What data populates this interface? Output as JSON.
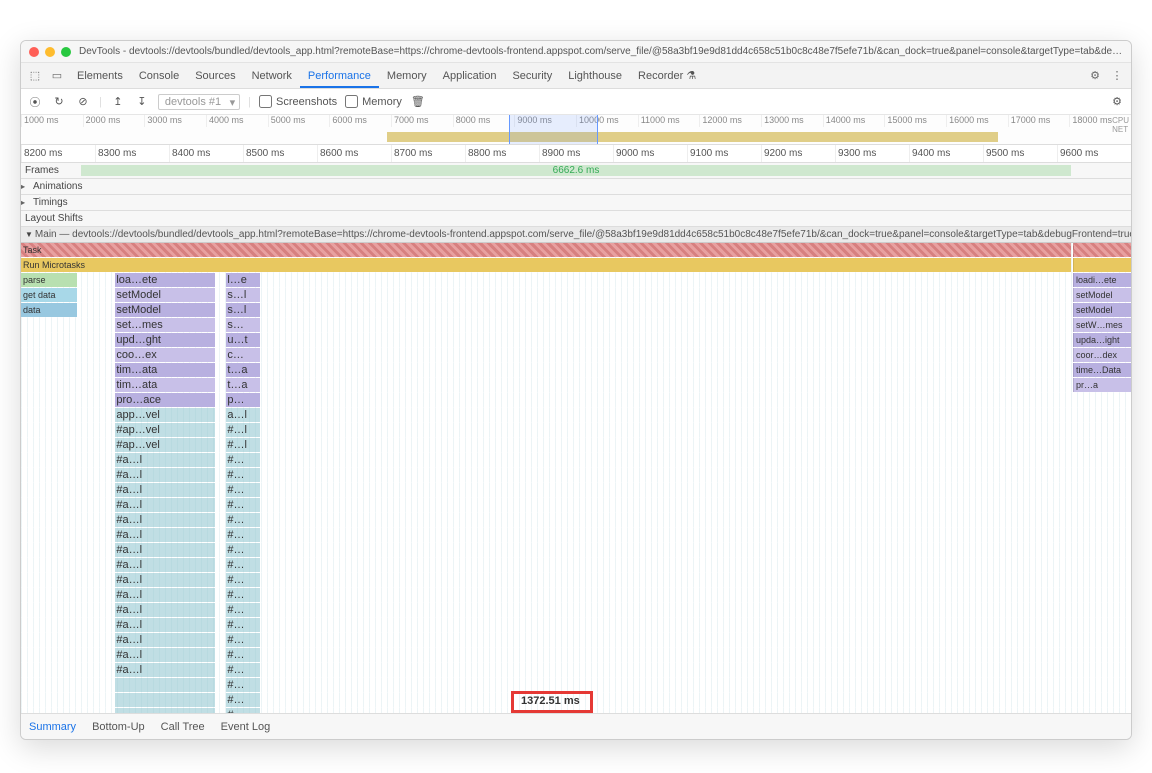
{
  "window": {
    "title": "DevTools - devtools://devtools/bundled/devtools_app.html?remoteBase=https://chrome-devtools-frontend.appspot.com/serve_file/@58a3bf19e9d81dd4c658c51b0c8c48e7f5efe71b/&can_dock=true&panel=console&targetType=tab&debugFrontend=true"
  },
  "tabs": {
    "items": [
      "Elements",
      "Console",
      "Sources",
      "Network",
      "Performance",
      "Memory",
      "Application",
      "Security",
      "Lighthouse",
      "Recorder"
    ],
    "active": "Performance",
    "recorder_badge": "⚗"
  },
  "toolbar": {
    "record": "⦿",
    "reload": "↻",
    "clear": "⊘",
    "upload": "↥",
    "download": "↧",
    "profile_select": "devtools #1",
    "screenshots_label": "Screenshots",
    "memory_label": "Memory",
    "trash": "🗑",
    "settings": "⚙"
  },
  "overview": {
    "ticks": [
      "1000 ms",
      "2000 ms",
      "3000 ms",
      "4000 ms",
      "5000 ms",
      "6000 ms",
      "7000 ms",
      "8000 ms",
      "9000 ms",
      "10000 ms",
      "11000 ms",
      "12000 ms",
      "13000 ms",
      "14000 ms",
      "15000 ms",
      "16000 ms",
      "17000 ms",
      "18000 ms"
    ],
    "right_labels": [
      "CPU",
      "NET"
    ],
    "activity_band": {
      "left_pct": 33,
      "width_pct": 55
    },
    "selection": {
      "left_pct": 44,
      "width_pct": 8
    }
  },
  "ruler2": [
    "8200 ms",
    "8300 ms",
    "8400 ms",
    "8500 ms",
    "8600 ms",
    "8700 ms",
    "8800 ms",
    "8900 ms",
    "9000 ms",
    "9100 ms",
    "9200 ms",
    "9300 ms",
    "9400 ms",
    "9500 ms",
    "9600 ms"
  ],
  "tracks": {
    "frames": {
      "label": "Frames",
      "value": "6662.6 ms"
    },
    "animations": "Animations",
    "timings": "Timings",
    "layout_shifts": "Layout Shifts",
    "main_label": "Main — devtools://devtools/bundled/devtools_app.html?remoteBase=https://chrome-devtools-frontend.appspot.com/serve_file/@58a3bf19e9d81dd4c658c51b0c8c48e7f5efe71b/&can_dock=true&panel=console&targetType=tab&debugFrontend=true"
  },
  "flame": {
    "task": "Task",
    "microtasks": "Run Microtasks",
    "left_labels": [
      "parse",
      "get data",
      "data"
    ],
    "cols": {
      "a": {
        "left_pct": 8.5,
        "width_pct": 9
      },
      "b": {
        "left_pct": 18.5,
        "width_pct": 3
      }
    },
    "rows": [
      {
        "a": "loa…ete",
        "b": "l…e",
        "right": "loadi…ete",
        "color": "c-lilac"
      },
      {
        "a": "setModel",
        "b": "s…l",
        "right": "setModel",
        "color": "c-lilac2"
      },
      {
        "a": "setModel",
        "b": "s…l",
        "right": "setModel",
        "color": "c-lilac"
      },
      {
        "a": "set…mes",
        "b": "s…",
        "right": "setW…mes",
        "color": "c-lilac2"
      },
      {
        "a": "upd…ght",
        "b": "u…t",
        "right": "upda…ight",
        "color": "c-lilac"
      },
      {
        "a": "coo…ex",
        "b": "c…",
        "right": "coor…dex",
        "color": "c-lilac2"
      },
      {
        "a": "tim…ata",
        "b": "t…a",
        "right": "time…Data",
        "color": "c-lilac"
      },
      {
        "a": "tim…ata",
        "b": "t…a",
        "right": "pr…a",
        "color": "c-lilac2"
      },
      {
        "a": "pro…ace",
        "b": "p…",
        "right": "",
        "color": "c-lilac"
      },
      {
        "a": "app…vel",
        "b": "a…l",
        "right": "",
        "color": "c-teal"
      },
      {
        "a": "#ap…vel",
        "b": "#…l",
        "right": "",
        "color": "c-teal"
      },
      {
        "a": "#ap…vel",
        "b": "#…l",
        "right": "",
        "color": "c-teal"
      },
      {
        "a": "#a…l",
        "b": "#…",
        "right": "",
        "color": "c-teal"
      },
      {
        "a": "#a…l",
        "b": "#…",
        "right": "",
        "color": "c-teal"
      },
      {
        "a": "#a…l",
        "b": "#…",
        "right": "",
        "color": "c-teal"
      },
      {
        "a": "#a…l",
        "b": "#…",
        "right": "",
        "color": "c-teal"
      },
      {
        "a": "#a…l",
        "b": "#…",
        "right": "",
        "color": "c-teal"
      },
      {
        "a": "#a…l",
        "b": "#…",
        "right": "",
        "color": "c-teal"
      },
      {
        "a": "#a…l",
        "b": "#…",
        "right": "",
        "color": "c-teal"
      },
      {
        "a": "#a…l",
        "b": "#…",
        "right": "",
        "color": "c-teal"
      },
      {
        "a": "#a…l",
        "b": "#…",
        "right": "",
        "color": "c-teal"
      },
      {
        "a": "#a…l",
        "b": "#…",
        "right": "",
        "color": "c-teal"
      },
      {
        "a": "#a…l",
        "b": "#…",
        "right": "",
        "color": "c-teal"
      },
      {
        "a": "#a…l",
        "b": "#…",
        "right": "",
        "color": "c-teal"
      },
      {
        "a": "#a…l",
        "b": "#…",
        "right": "",
        "color": "c-teal"
      },
      {
        "a": "#a…l",
        "b": "#…",
        "right": "",
        "color": "c-teal"
      },
      {
        "a": "#a…l",
        "b": "#…",
        "right": "",
        "color": "c-teal"
      },
      {
        "a": "",
        "b": "#…",
        "right": "",
        "color": "c-teal"
      },
      {
        "a": "",
        "b": "#…",
        "right": "",
        "color": "c-teal"
      },
      {
        "a": "",
        "b": "#…",
        "right": "",
        "color": "c-teal"
      }
    ]
  },
  "highlight": {
    "text": "1372.51 ms"
  },
  "bottom_tabs": {
    "items": [
      "Summary",
      "Bottom-Up",
      "Call Tree",
      "Event Log"
    ],
    "active": "Summary"
  },
  "colors": {
    "task": "#e8a0a0",
    "micro": "#e8c860",
    "parse": "#b8e0b0",
    "getdata": "#a8d8e8",
    "data": "#98c8e0",
    "lilac": "#b8b0e0",
    "lilac2": "#c8c0e8",
    "teal": "#96c8d2",
    "highlight": "#e53935",
    "accent": "#1a73e8"
  }
}
